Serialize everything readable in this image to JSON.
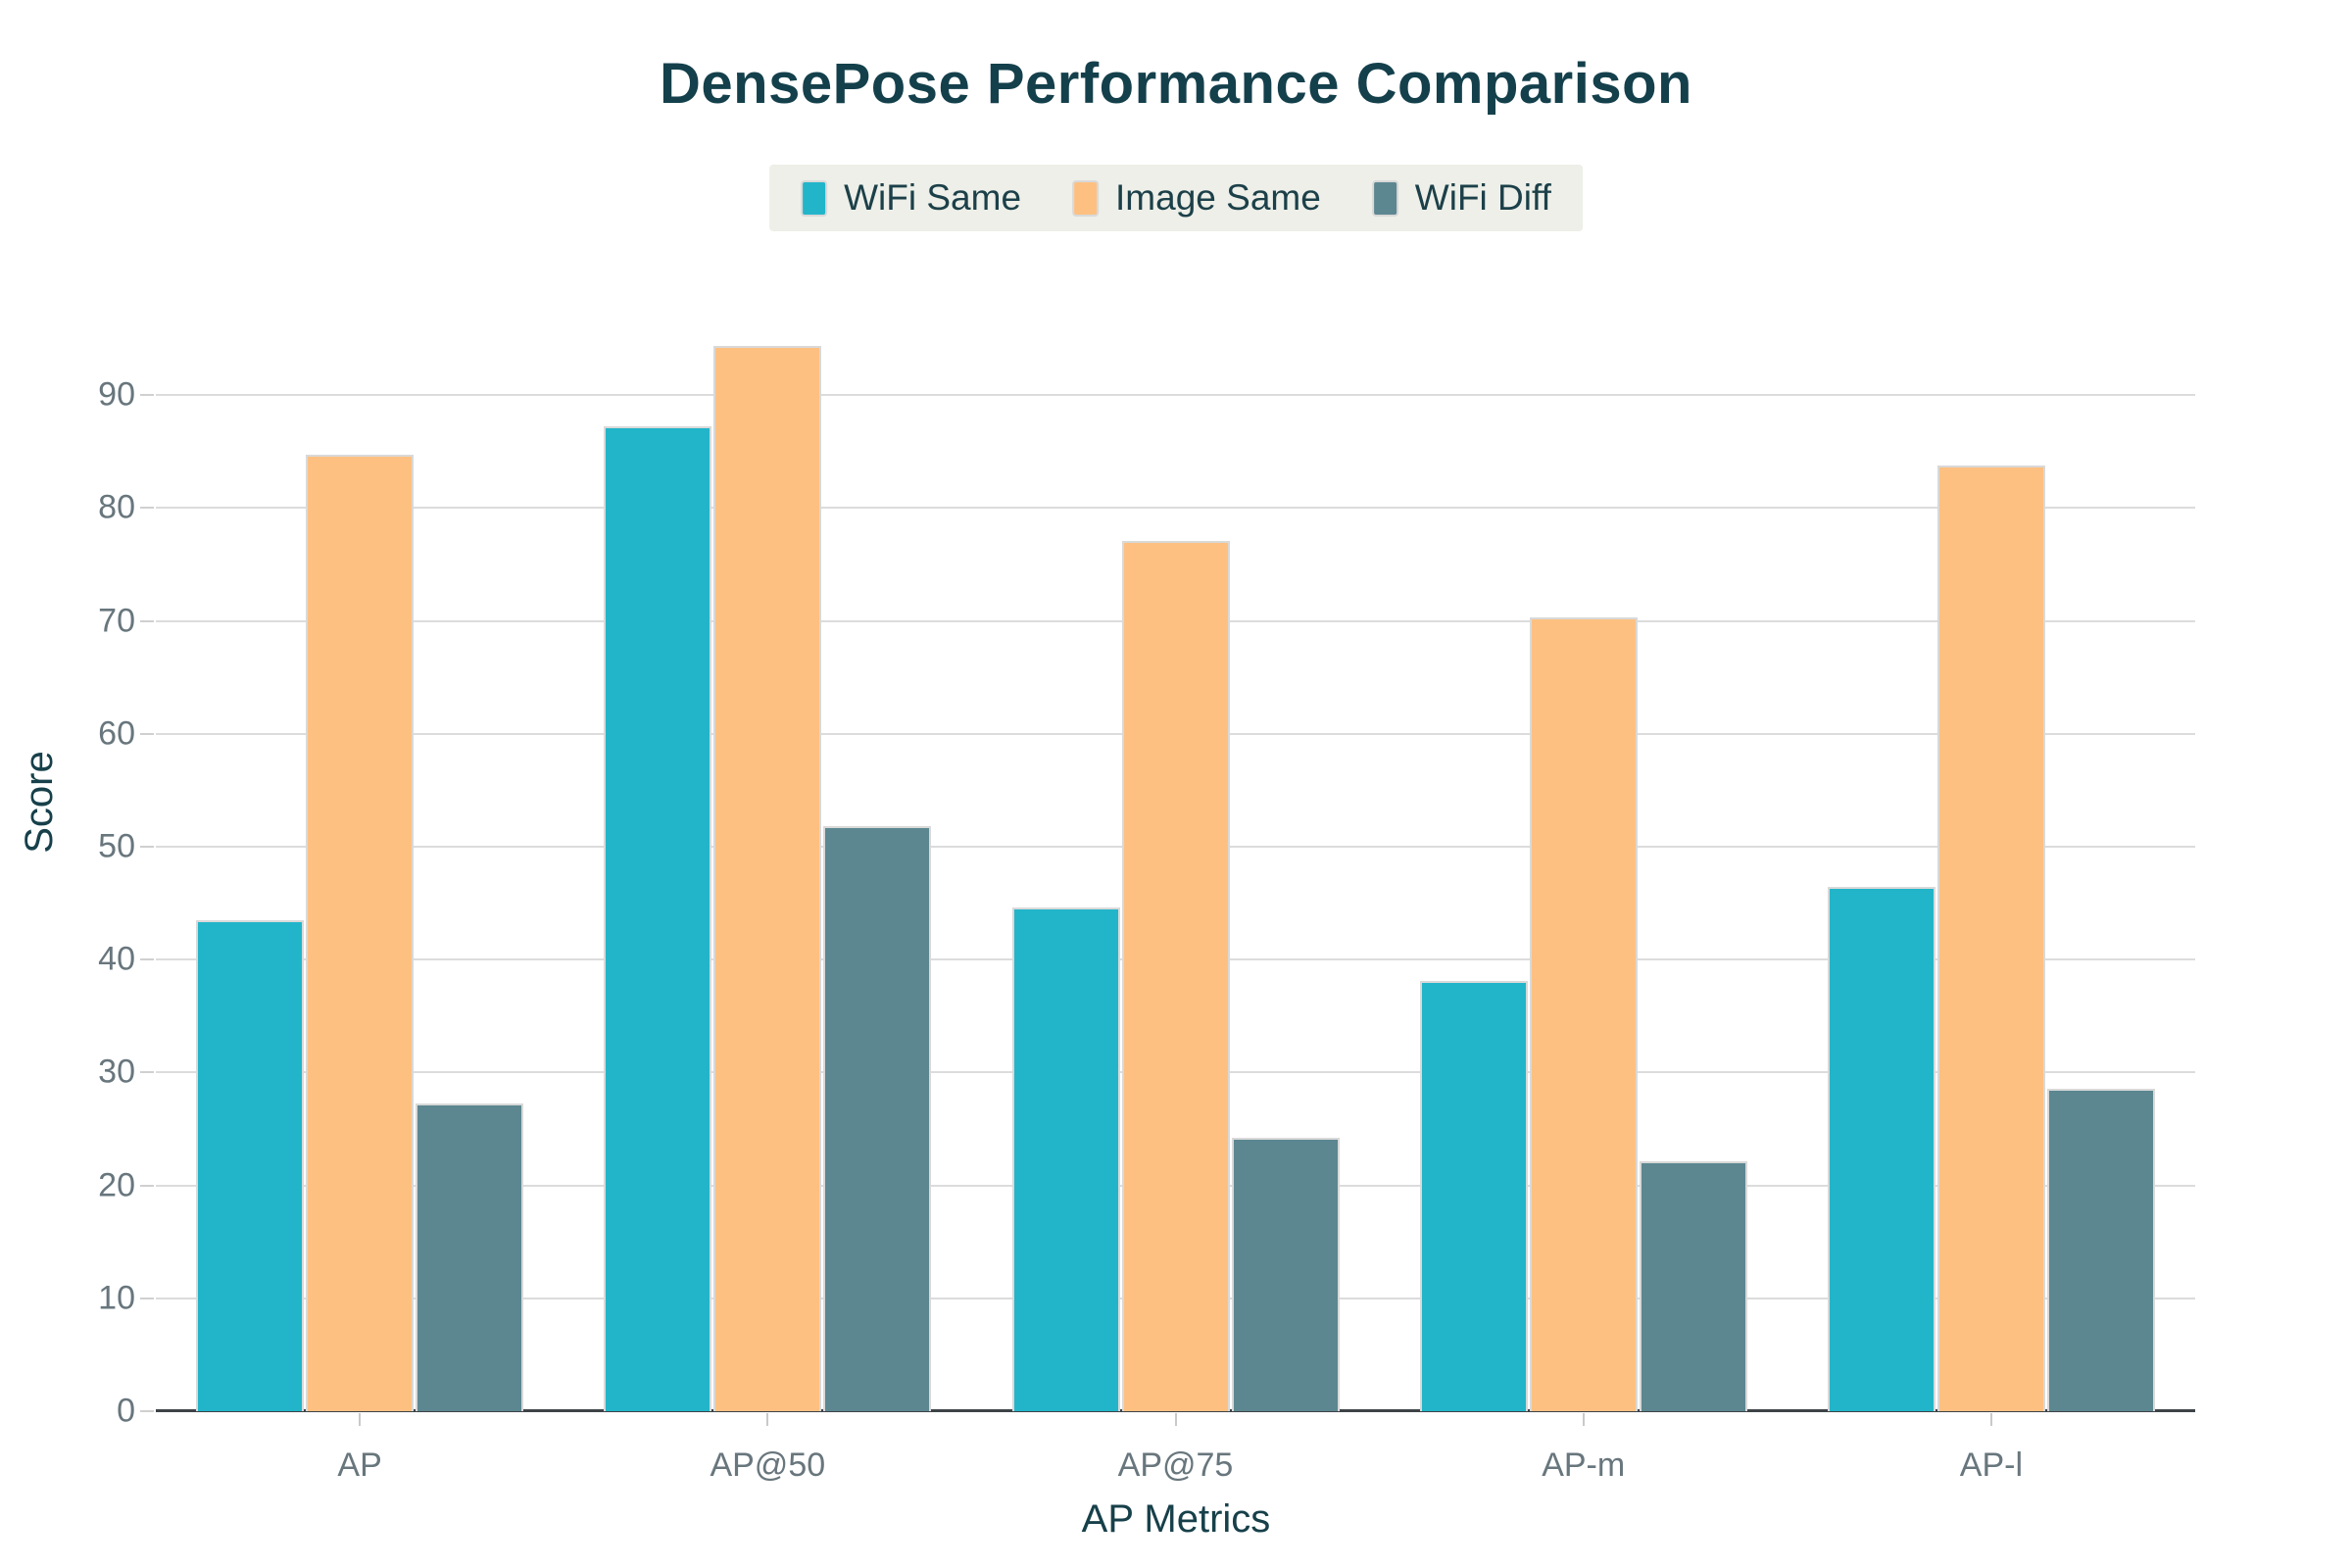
{
  "title": "DensePose Performance Comparison",
  "colors": {
    "wifi_same": "#22b5c9",
    "image_same": "#fec081",
    "wifi_diff": "#5c8790",
    "title_text": "#14404c",
    "tick_text": "#68767d",
    "gridline": "#dcdcdc",
    "axis_line": "#3d4347",
    "legend_background": "#edefe8"
  },
  "chart_data": {
    "type": "bar",
    "title": "DensePose Performance Comparison",
    "categories": [
      "AP",
      "AP@50",
      "AP@75",
      "AP-m",
      "AP-l"
    ],
    "series": [
      {
        "name": "WiFi Same",
        "color": "#22b5c9",
        "values": [
          43.5,
          87.2,
          44.6,
          38.1,
          46.4
        ]
      },
      {
        "name": "Image Same",
        "color": "#fec081",
        "values": [
          84.7,
          94.4,
          77.1,
          70.3,
          83.8
        ]
      },
      {
        "name": "WiFi Diff",
        "color": "#5c8790",
        "values": [
          27.3,
          51.8,
          24.2,
          22.1,
          28.6
        ]
      }
    ],
    "xlabel": "AP Metrics",
    "ylabel": "Score",
    "ylim": [
      0,
      100
    ],
    "yticks": [
      0,
      10,
      20,
      30,
      40,
      50,
      60,
      70,
      80,
      90
    ],
    "grid": true,
    "legend_position": "top"
  }
}
